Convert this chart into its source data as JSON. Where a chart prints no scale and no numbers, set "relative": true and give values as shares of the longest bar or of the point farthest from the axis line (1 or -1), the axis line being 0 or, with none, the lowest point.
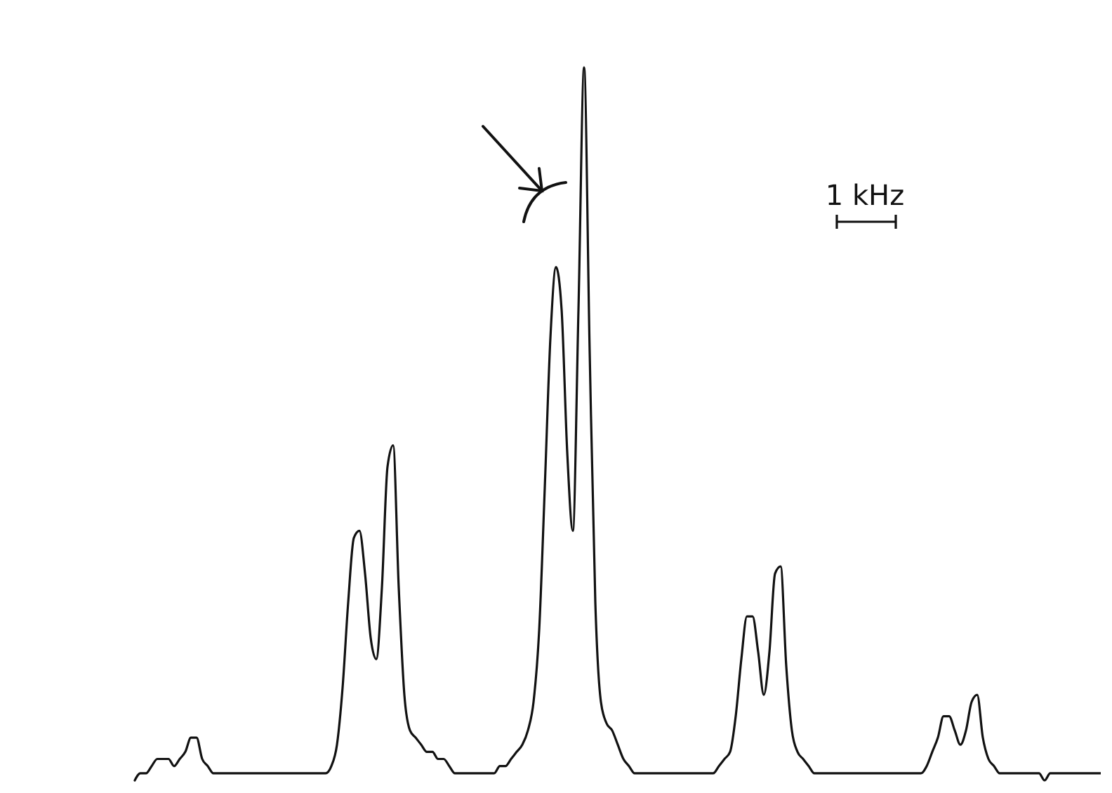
{
  "chart_data": {
    "type": "line",
    "relative": true,
    "categories": [
      null,
      null,
      null,
      null,
      null,
      null,
      null,
      null,
      null,
      null,
      null,
      null,
      null,
      null,
      null,
      null,
      null,
      null,
      null,
      null,
      null,
      null,
      null,
      null,
      null,
      null,
      null,
      null,
      null,
      null,
      null,
      null,
      null,
      null,
      null,
      null,
      null,
      null,
      null,
      null,
      null,
      null,
      null,
      null,
      null,
      null,
      null,
      null,
      null,
      null,
      null,
      null,
      null,
      null,
      null,
      null,
      null,
      null,
      null,
      null,
      null,
      null,
      null,
      null,
      null,
      null,
      null,
      null,
      null,
      null,
      null,
      null,
      null,
      null,
      null,
      null,
      null,
      null,
      null,
      null,
      null,
      null,
      null,
      null,
      null,
      null,
      null,
      null,
      null,
      null,
      null,
      null,
      null,
      null,
      null,
      null,
      null,
      null,
      null,
      null,
      null,
      null,
      null,
      null,
      null,
      null,
      null,
      null,
      null,
      null,
      null,
      null,
      null,
      null,
      null,
      null,
      null,
      null,
      null,
      null,
      null,
      null,
      null,
      null,
      null,
      null,
      null,
      null,
      null,
      null,
      null,
      null,
      null,
      null,
      null,
      null,
      null,
      null,
      null,
      null,
      null,
      null,
      null,
      null,
      null,
      null,
      null,
      null,
      null,
      null,
      null,
      null,
      null,
      null,
      null,
      null,
      null,
      null,
      null,
      null,
      null,
      null,
      null,
      null,
      null,
      null,
      null,
      null,
      null,
      null,
      null,
      null,
      null
    ],
    "series": [
      {
        "color": "#111111",
        "values": [
          0,
          0.01,
          0.01,
          0.02,
          0.03,
          0.03,
          0.03,
          0.02,
          0.03,
          0.04,
          0.06,
          0.06,
          0.03,
          0.02,
          0.01,
          0.01,
          0.01,
          0.01,
          0.01,
          0.01,
          0.01,
          0.01,
          0.01,
          0.01,
          0.01,
          0.01,
          0.01,
          0.01,
          0.01,
          0.01,
          0.01,
          0.01,
          0.01,
          0.01,
          0.01,
          0.02,
          0.05,
          0.13,
          0.25,
          0.34,
          0.35,
          0.29,
          0.2,
          0.17,
          0.27,
          0.44,
          0.47,
          0.27,
          0.12,
          0.07,
          0.06,
          0.05,
          0.04,
          0.04,
          0.03,
          0.03,
          0.02,
          0.01,
          0.01,
          0.01,
          0.01,
          0.01,
          0.01,
          0.01,
          0.01,
          0.02,
          0.02,
          0.03,
          0.04,
          0.05,
          0.07,
          0.11,
          0.21,
          0.41,
          0.62,
          0.72,
          0.66,
          0.46,
          0.35,
          0.66,
          1,
          0.6,
          0.25,
          0.11,
          0.08,
          0.07,
          0.05,
          0.03,
          0.02,
          0.01,
          0.01,
          0.01,
          0.01,
          0.01,
          0.01,
          0.01,
          0.01,
          0.01,
          0.01,
          0.01,
          0.01,
          0.01,
          0.01,
          0.01,
          0.02,
          0.03,
          0.04,
          0.09,
          0.17,
          0.23,
          0.23,
          0.18,
          0.12,
          0.18,
          0.29,
          0.3,
          0.16,
          0.07,
          0.04,
          0.03,
          0.02,
          0.01,
          0.01,
          0.01,
          0.01,
          0.01,
          0.01,
          0.01,
          0.01,
          0.01,
          0.01,
          0.01,
          0.01,
          0.01,
          0.01,
          0.01,
          0.01,
          0.01,
          0.01,
          0.01,
          0.01,
          0.02,
          0.04,
          0.06,
          0.09,
          0.09,
          0.07,
          0.05,
          0.07,
          0.11,
          0.12,
          0.06,
          0.03,
          0.02,
          0.01,
          0.01,
          0.01,
          0.01,
          0.01,
          0.01,
          0.01,
          0.01,
          0,
          0.01,
          0.01,
          0.01,
          0.01,
          0.01,
          0.01,
          0.01,
          0.01,
          0.01,
          0.01
        ]
      }
    ],
    "annotations": [
      "1 kHz"
    ]
  }
}
